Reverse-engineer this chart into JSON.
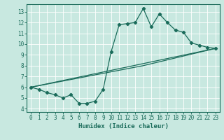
{
  "xlabel": "Humidex (Indice chaleur)",
  "bg_color": "#c8e8e0",
  "grid_color": "#ffffff",
  "line_color": "#1a6b5a",
  "xlim": [
    -0.5,
    23.5
  ],
  "ylim": [
    3.7,
    13.7
  ],
  "yticks": [
    4,
    5,
    6,
    7,
    8,
    9,
    10,
    11,
    12,
    13
  ],
  "xticks": [
    0,
    1,
    2,
    3,
    4,
    5,
    6,
    7,
    8,
    9,
    10,
    11,
    12,
    13,
    14,
    15,
    16,
    17,
    18,
    19,
    20,
    21,
    22,
    23
  ],
  "line1_x": [
    0,
    1,
    2,
    3,
    4,
    5,
    6,
    7,
    8,
    9,
    10,
    11,
    12,
    13,
    14,
    15,
    16,
    17,
    18,
    19,
    20,
    21,
    22,
    23
  ],
  "line1_y": [
    6.0,
    5.8,
    5.5,
    5.3,
    5.0,
    5.3,
    4.5,
    4.5,
    4.7,
    5.8,
    9.3,
    11.8,
    11.9,
    12.0,
    13.3,
    11.6,
    12.8,
    12.0,
    11.3,
    11.1,
    10.1,
    9.9,
    9.7,
    9.6
  ],
  "line2_x": [
    0,
    23
  ],
  "line2_y": [
    6.0,
    9.6
  ],
  "line3_x": [
    0,
    14,
    23
  ],
  "line3_y": [
    6.0,
    8.0,
    9.6
  ],
  "marker": "D",
  "markersize": 2.2,
  "linewidth": 0.9,
  "tick_fontsize": 5.5,
  "xlabel_fontsize": 6.5
}
